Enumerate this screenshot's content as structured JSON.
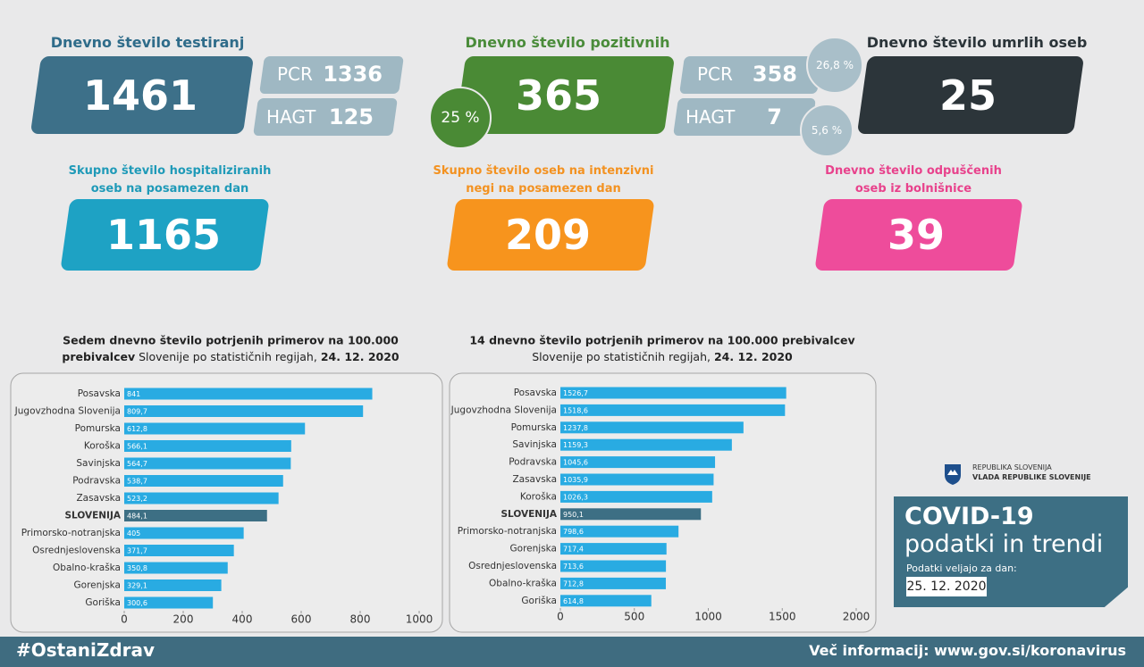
{
  "cards": {
    "testing": {
      "title": "Dnevno število testiranj",
      "value": "1461",
      "pcr_label": "PCR",
      "pcr_value": "1336",
      "hagt_label": "HAGT",
      "hagt_value": "125"
    },
    "positive": {
      "title": "Dnevno število pozitivnih",
      "value": "365",
      "share": "25 %",
      "pcr_label": "PCR",
      "pcr_value": "358",
      "pcr_share": "26,8 %",
      "hagt_label": "HAGT",
      "hagt_value": "7",
      "hagt_share": "5,6 %"
    },
    "deaths": {
      "title": "Dnevno število umrlih oseb",
      "value": "25"
    },
    "hospitalized": {
      "title": [
        "Skupno število hospitaliziranih",
        "oseb na posamezen dan"
      ],
      "value": "1165"
    },
    "icu": {
      "title": [
        "Skupno število oseb na intenzivni",
        "negi na posamezen dan"
      ],
      "value": "209"
    },
    "discharged": {
      "title": [
        "Dnevno število odpuščenih",
        "oseb iz bolnišnice"
      ],
      "value": "39"
    }
  },
  "chart_data": [
    {
      "type": "bar",
      "orientation": "horizontal",
      "title": [
        "Sedem dnevno število potrjenih primerov na 100.000",
        "prebivalcev",
        "Slovenije po statističnih regijah,",
        "24. 12. 2020"
      ],
      "categories": [
        "Posavska",
        "Jugovzhodna Slovenija",
        "Pomurska",
        "Koroška",
        "Savinjska",
        "Podravska",
        "Zasavska",
        "SLOVENIJA",
        "Primorsko-notranjska",
        "Osrednjeslovenska",
        "Obalno-kraška",
        "Gorenjska",
        "Goriška"
      ],
      "values": [
        841,
        809.7,
        612.8,
        566.1,
        564.7,
        538.7,
        523.2,
        484.1,
        405,
        371.7,
        350.8,
        329.1,
        300.6
      ],
      "value_labels": [
        "841",
        "809,7",
        "612,8",
        "566,1",
        "564,7",
        "538,7",
        "523,2",
        "484,1",
        "405",
        "371,7",
        "350,8",
        "329,1",
        "300,6"
      ],
      "colors": [
        "#29abe2",
        "#29abe2",
        "#29abe2",
        "#29abe2",
        "#29abe2",
        "#29abe2",
        "#29abe2",
        "#3d6f84",
        "#29abe2",
        "#29abe2",
        "#29abe2",
        "#29abe2",
        "#29abe2"
      ],
      "xlim": [
        0,
        1000
      ],
      "xticks": [
        0,
        200,
        400,
        600,
        800,
        1000
      ]
    },
    {
      "type": "bar",
      "orientation": "horizontal",
      "title": [
        "14 dnevno število potrjenih primerov na 100.000 prebivalcev",
        "",
        "Slovenije po statističnih regijah,",
        "24. 12. 2020"
      ],
      "categories": [
        "Posavska",
        "Jugovzhodna Slovenija",
        "Pomurska",
        "Savinjska",
        "Podravska",
        "Zasavska",
        "Koroška",
        "SLOVENIJA",
        "Primorsko-notranjska",
        "Gorenjska",
        "Osrednjeslovenska",
        "Obalno-kraška",
        "Goriška"
      ],
      "values": [
        1526.7,
        1518.6,
        1237.8,
        1159.3,
        1045.6,
        1035.9,
        1026.3,
        950.1,
        798.6,
        717.4,
        713.6,
        712.8,
        614.8
      ],
      "value_labels": [
        "1526,7",
        "1518,6",
        "1237,8",
        "1159,3",
        "1045,6",
        "1035,9",
        "1026,3",
        "950,1",
        "798,6",
        "717,4",
        "713,6",
        "712,8",
        "614,8"
      ],
      "colors": [
        "#29abe2",
        "#29abe2",
        "#29abe2",
        "#29abe2",
        "#29abe2",
        "#29abe2",
        "#29abe2",
        "#3d6f84",
        "#29abe2",
        "#29abe2",
        "#29abe2",
        "#29abe2",
        "#29abe2"
      ],
      "xlim": [
        0,
        2000
      ],
      "xticks": [
        0,
        500,
        1000,
        1500,
        2000
      ]
    }
  ],
  "branding": {
    "republic": "REPUBLIKA SLOVENIJA",
    "government": "VLADA REPUBLIKE SLOVENIJE",
    "title": "COVID-19",
    "subtitle": "podatki in trendi",
    "valid_label": "Podatki veljajo za dan:",
    "valid_date": "25. 12. 2020"
  },
  "footer": {
    "hashtag": "#OstaniZdrav",
    "info": "Več informacij: www.gov.si/koronavirus"
  }
}
